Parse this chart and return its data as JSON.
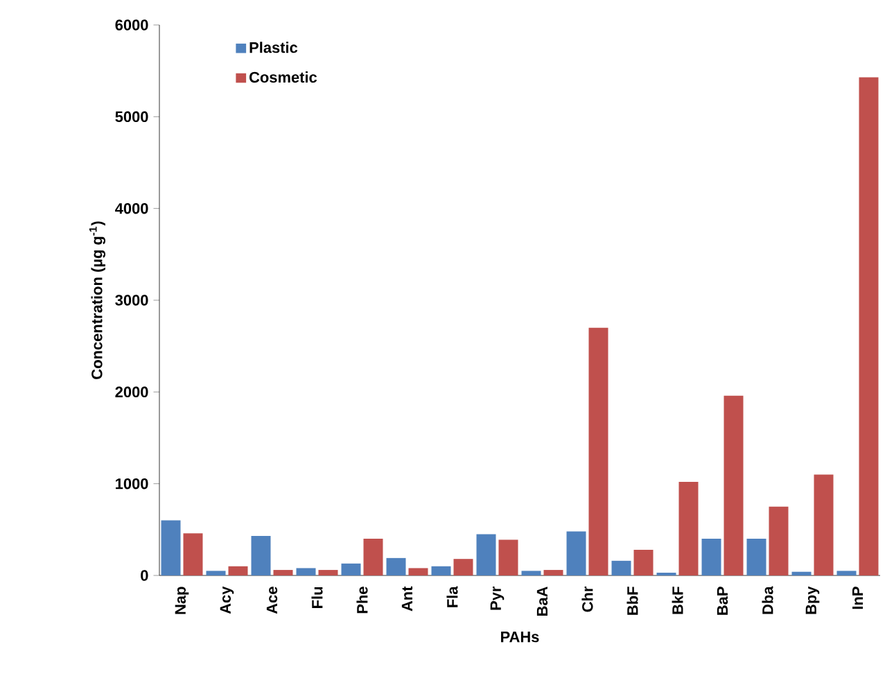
{
  "chart_data": {
    "type": "bar",
    "xlabel": "PAHs",
    "ylabel": "Concentration (µg g$^{-1}$)",
    "categories": [
      "Nap",
      "Acy",
      "Ace",
      "Flu",
      "Phe",
      "Ant",
      "Fla",
      "Pyr",
      "BaA",
      "Chr",
      "BbF",
      "BkF",
      "BaP",
      "Dba",
      "Bpy",
      "InP"
    ],
    "series": [
      {
        "name": "Plastic",
        "color": "#4f81bd",
        "values": [
          600,
          50,
          430,
          80,
          130,
          190,
          100,
          450,
          50,
          480,
          160,
          30,
          400,
          400,
          40,
          50
        ]
      },
      {
        "name": "Cosmetic",
        "color": "#c0504d",
        "values": [
          460,
          100,
          60,
          60,
          400,
          80,
          180,
          390,
          60,
          2700,
          280,
          1020,
          1960,
          750,
          1100,
          5430
        ]
      }
    ],
    "ylim": [
      0,
      6000
    ],
    "yticks": [
      0,
      1000,
      2000,
      3000,
      4000,
      5000,
      6000
    ],
    "legend": "top left"
  }
}
